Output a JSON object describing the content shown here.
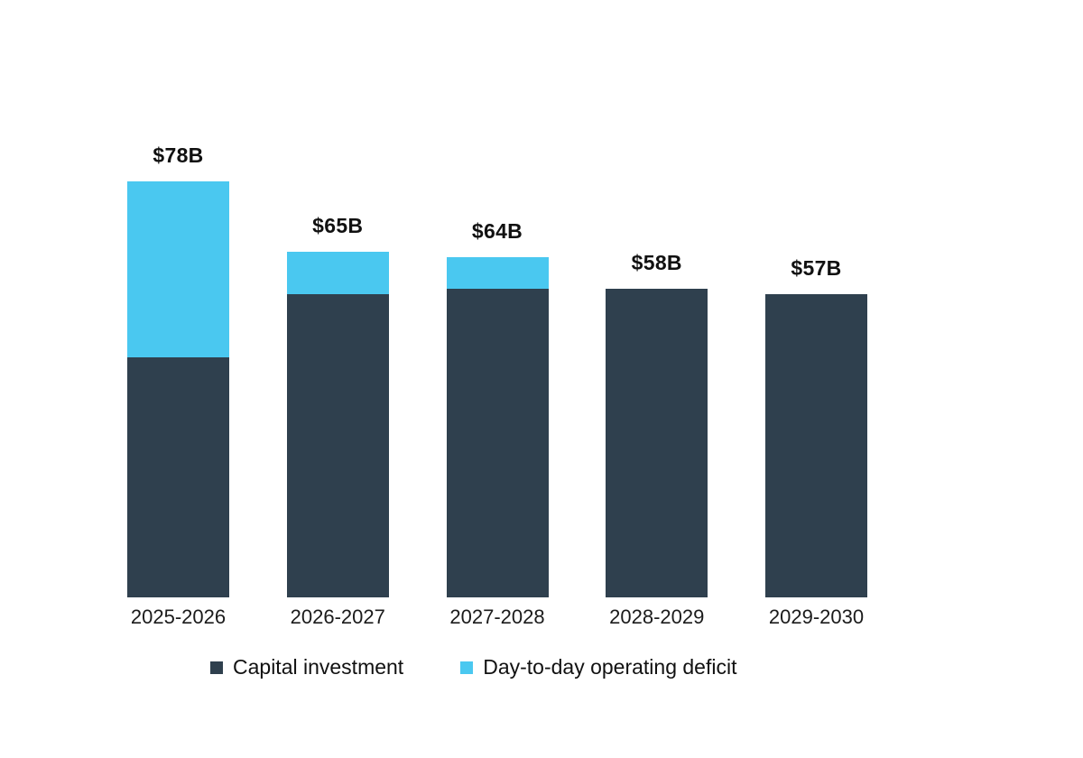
{
  "chart_data": {
    "type": "bar",
    "stacked": true,
    "title": "",
    "xlabel": "",
    "ylabel": "",
    "categories": [
      "2025-2026",
      "2026-2027",
      "2027-2028",
      "2028-2029",
      "2029-2030"
    ],
    "series": [
      {
        "name": "Capital investment",
        "color": "#2F404E",
        "values": [
          45,
          57,
          58,
          58,
          57
        ]
      },
      {
        "name": "Day-to-day operating deficit",
        "color": "#4AC8F0",
        "values": [
          33,
          8,
          6,
          0,
          0
        ]
      }
    ],
    "totals": [
      78,
      65,
      64,
      58,
      57
    ],
    "total_labels": [
      "$78B",
      "$65B",
      "$64B",
      "$58B",
      "$57B"
    ],
    "unit": "billions of dollars",
    "ylim": [
      0,
      78
    ],
    "grid": false,
    "axis_lines": false,
    "legend_position": "bottom"
  },
  "colors": {
    "background": "#ffffff",
    "capital_investment": "#2F404E",
    "operating_deficit": "#4AC8F0",
    "text": "#111111"
  }
}
